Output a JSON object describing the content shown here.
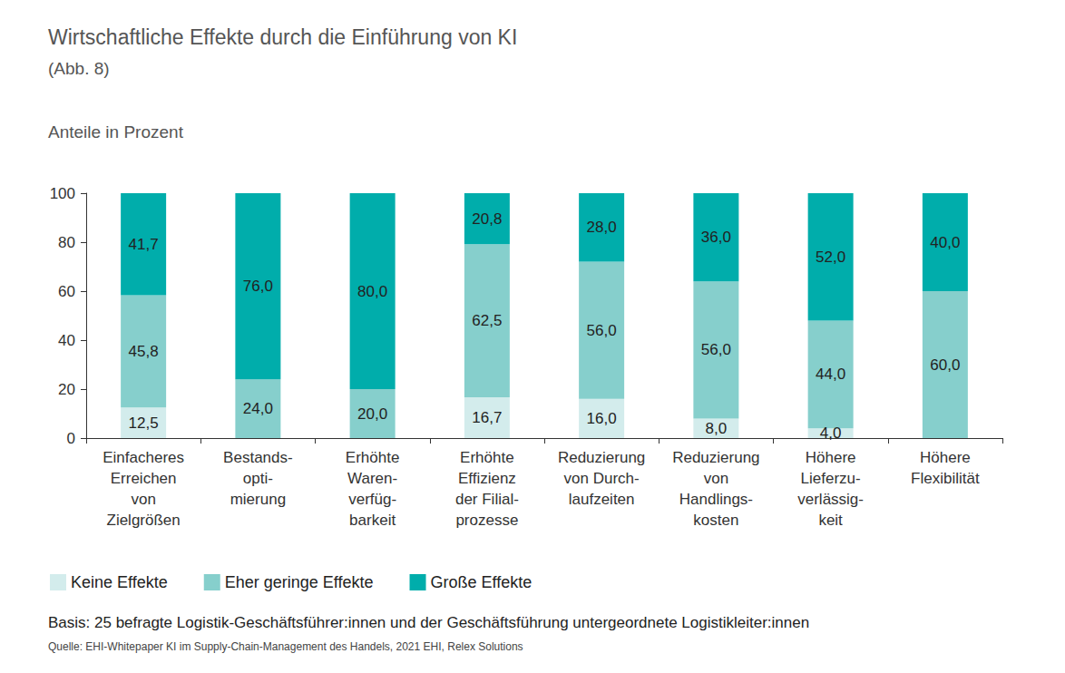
{
  "chart_data": {
    "type": "bar",
    "title": "Wirtschaftliche Effekte durch die Einführung von KI",
    "subtitle": "(Abb. 8)",
    "y_label": "Anteile in Prozent",
    "categories": [
      "Einfacheres\nErreichen\nvon\nZielgrößen",
      "Bestands-\nopti-\nmierung",
      "Erhöhte\nWaren-\nverfüg-\nbarkeit",
      "Erhöhte\nEffizienz\nder Filial-\nprozesse",
      "Reduzierung\nvon Durch-\nlaufzeiten",
      "Reduzierung\nvon\nHandlings-\nkosten",
      "Höhere\nLieferzu-\nverlässig-\nkeit",
      "Höhere\nFlexibilität"
    ],
    "series": [
      {
        "name": "Keine Effekte",
        "color": "#d3ecec",
        "values": [
          12.5,
          0,
          0,
          16.7,
          16.0,
          8.0,
          4.0,
          0
        ],
        "value_labels": [
          "12,5",
          null,
          null,
          "16,7",
          "16,0",
          "8,0",
          "4,0",
          null
        ]
      },
      {
        "name": "Eher geringe Effekte",
        "color": "#86cfcc",
        "values": [
          45.8,
          24.0,
          20.0,
          62.5,
          56.0,
          56.0,
          44.0,
          60.0
        ],
        "value_labels": [
          "45,8",
          "24,0",
          "20,0",
          "62,5",
          "56,0",
          "56,0",
          "44,0",
          "60,0"
        ]
      },
      {
        "name": "Große Effekte",
        "color": "#00adab",
        "values": [
          41.7,
          76.0,
          80.0,
          20.8,
          28.0,
          36.0,
          52.0,
          40.0
        ],
        "value_labels": [
          "41,7",
          "76,0",
          "80,0",
          "20,8",
          "28,0",
          "36,0",
          "52,0",
          "40,0"
        ]
      }
    ],
    "ylim": [
      0,
      100
    ],
    "yticks": [
      0,
      20,
      40,
      60,
      80,
      100
    ],
    "grid": false,
    "stacked": true,
    "data_labels": true,
    "legend": "bottom",
    "notes": [
      "Basis: 25 befragte Logistik-Geschäftsführer:innen und der Geschäftsführung untergeordnete Logistikleiter:innen",
      "Quelle: EHI-Whitepaper KI im Supply-Chain-Management des Handels, 2021 EHI, Relex Solutions"
    ]
  }
}
